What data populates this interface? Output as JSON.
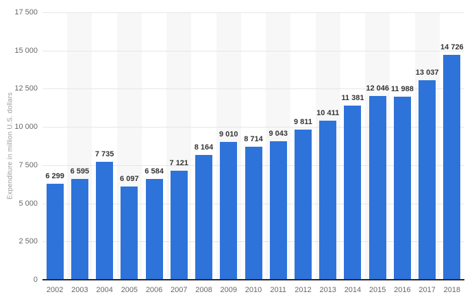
{
  "chart_data": {
    "type": "bar",
    "title": "",
    "categories": [
      "2002",
      "2003",
      "2004",
      "2005",
      "2006",
      "2007",
      "2008",
      "2009",
      "2010",
      "2011",
      "2012",
      "2013",
      "2014",
      "2015",
      "2016",
      "2017",
      "2018"
    ],
    "values": [
      6299,
      6595,
      7735,
      6097,
      6584,
      7121,
      8164,
      9010,
      8714,
      9043,
      9811,
      10411,
      11381,
      12046,
      11988,
      13037,
      14726
    ],
    "xlabel": "",
    "ylabel": "Expenditure in million U.S. dollars",
    "ylim": [
      0,
      17500
    ],
    "ytick_interval": 2500,
    "grid": true,
    "legend": "none",
    "bar_color": "#2e73d9",
    "band_color": "#f7f7f7",
    "gridline_color": "#e6e6e6",
    "axis_line_color": "#262626",
    "value_label_color": "#333333",
    "tick_label_color": "#666666",
    "ylabel_color": "#9b9b9b",
    "number_grouping": "space"
  }
}
